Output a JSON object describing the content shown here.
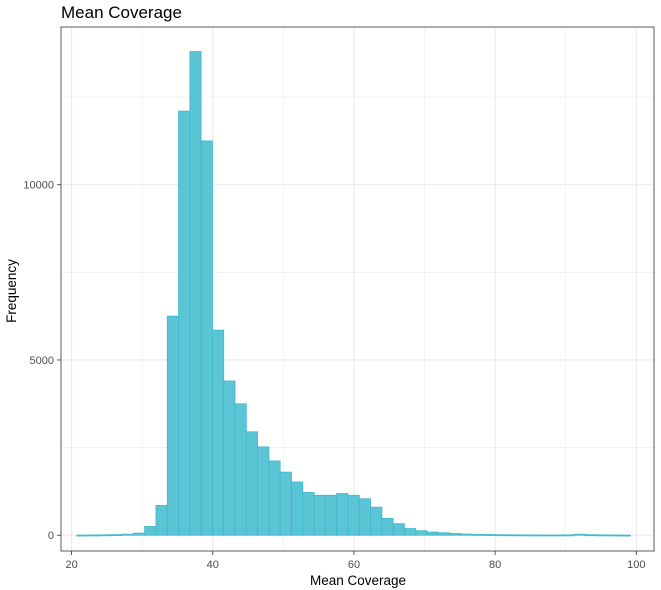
{
  "chart_data": {
    "type": "bar",
    "title": "Mean Coverage",
    "xlabel": "Mean Coverage",
    "ylabel": "Frequency",
    "xlim": [
      18.5,
      102.5
    ],
    "ylim": [
      -450,
      14500
    ],
    "x_ticks": [
      20,
      40,
      60,
      80,
      100
    ],
    "y_ticks": [
      0,
      5000,
      10000
    ],
    "x_tick_labels": [
      "20",
      "40",
      "60",
      "80",
      "100"
    ],
    "y_tick_labels": [
      "0",
      "5000",
      "10000"
    ],
    "grid": true,
    "legend": "none",
    "bin_width": 1.6,
    "bin_left_edges": [
      20.75,
      22.35,
      23.95,
      25.55,
      27.15,
      28.75,
      30.35,
      31.95,
      33.55,
      35.15,
      36.75,
      38.35,
      39.95,
      41.55,
      43.15,
      44.75,
      46.35,
      47.95,
      49.55,
      51.15,
      52.75,
      54.35,
      55.95,
      57.55,
      59.15,
      60.75,
      62.35,
      63.95,
      65.55,
      67.15,
      68.75,
      70.35,
      71.95,
      73.55,
      75.15,
      76.75,
      78.35,
      79.95,
      81.55,
      83.15,
      84.75,
      86.35,
      87.95,
      89.55,
      91.15,
      92.75,
      94.35,
      95.95,
      97.55
    ],
    "values": [
      5,
      8,
      12,
      18,
      30,
      60,
      250,
      850,
      6250,
      12100,
      13800,
      11250,
      5850,
      4400,
      3750,
      2950,
      2520,
      2120,
      1800,
      1520,
      1220,
      1140,
      1140,
      1190,
      1140,
      1040,
      800,
      480,
      330,
      190,
      130,
      90,
      70,
      50,
      35,
      25,
      20,
      15,
      12,
      10,
      8,
      8,
      8,
      10,
      30,
      15,
      10,
      8,
      5
    ],
    "colors": {
      "bar_fill": "#5bc5d6",
      "bar_stroke": "#3bb9cc",
      "grid": "#ebebeb",
      "panel_border": "#333333",
      "tick_label": "#4d4d4d"
    }
  }
}
